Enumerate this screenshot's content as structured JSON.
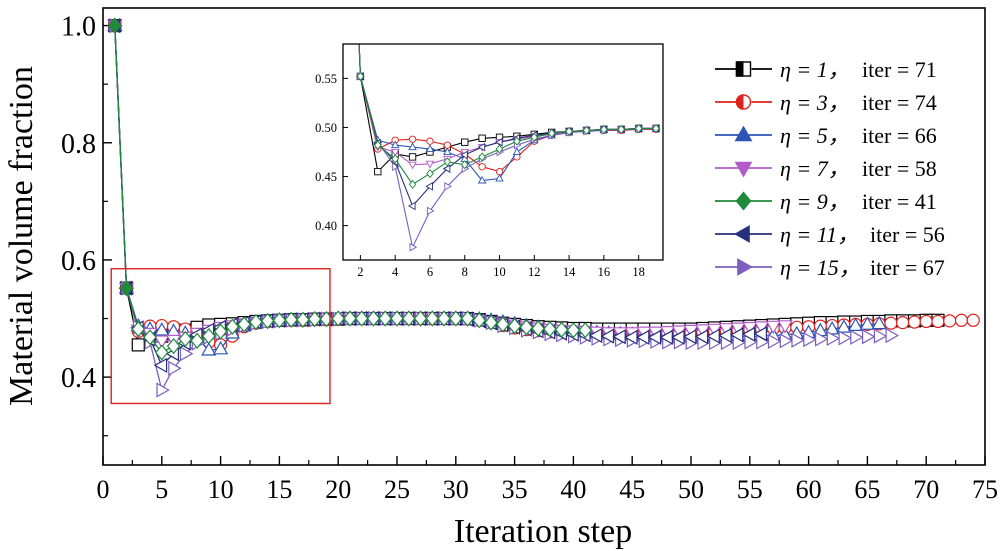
{
  "chart_data": [
    {
      "type": "line",
      "name": "main",
      "xlabel": "Iteration step",
      "ylabel": "Material volume fraction",
      "xlim": [
        0,
        75
      ],
      "ylim": [
        0.25,
        1.03
      ],
      "xticks": [
        "0",
        "5",
        "10",
        "15",
        "20",
        "25",
        "30",
        "35",
        "40",
        "45",
        "50",
        "55",
        "60",
        "65",
        "70",
        "75"
      ],
      "yticks": [
        "0.4",
        "0.6",
        "0.8",
        "1.0"
      ],
      "highlight_box": {
        "x_range": [
          0.7,
          19.3
        ],
        "y_range": [
          0.355,
          0.585
        ],
        "color": "#e0211f"
      },
      "series": [
        {
          "name": "η = 1",
          "label_eta": "η = 1，",
          "label_iter": "iter = 71",
          "color": "#000000",
          "marker": "square",
          "x": [
            1,
            2,
            3,
            4,
            5,
            6,
            7,
            8,
            9,
            10,
            11,
            12,
            13,
            14,
            15,
            16,
            17,
            18,
            19,
            20,
            21,
            22,
            23,
            24,
            25,
            26,
            27,
            28,
            29,
            30,
            31,
            32,
            33,
            34,
            35,
            36,
            37,
            38,
            39,
            40,
            41,
            42,
            43,
            44,
            45,
            46,
            47,
            48,
            49,
            50,
            51,
            52,
            53,
            54,
            55,
            56,
            57,
            58,
            59,
            60,
            61,
            62,
            63,
            64,
            65,
            66,
            67,
            68,
            69,
            70,
            71
          ],
          "y": [
            1.0,
            0.552,
            0.455,
            0.473,
            0.47,
            0.475,
            0.48,
            0.485,
            0.489,
            0.49,
            0.491,
            0.493,
            0.495,
            0.496,
            0.497,
            0.498,
            0.498,
            0.499,
            0.499,
            0.499,
            0.5,
            0.5,
            0.5,
            0.5,
            0.5,
            0.5,
            0.5,
            0.5,
            0.5,
            0.5,
            0.5,
            0.498,
            0.495,
            0.492,
            0.49,
            0.488,
            0.486,
            0.485,
            0.484,
            0.483,
            0.483,
            0.482,
            0.482,
            0.482,
            0.482,
            0.482,
            0.482,
            0.482,
            0.482,
            0.482,
            0.483,
            0.484,
            0.485,
            0.486,
            0.487,
            0.488,
            0.489,
            0.49,
            0.491,
            0.492,
            0.493,
            0.493,
            0.494,
            0.494,
            0.495,
            0.495,
            0.496,
            0.496,
            0.496,
            0.497,
            0.497
          ]
        },
        {
          "name": "η = 3",
          "label_eta": "η = 3，",
          "label_iter": "iter = 74",
          "color": "#e0211f",
          "marker": "circle",
          "x": [
            1,
            2,
            3,
            4,
            5,
            6,
            7,
            8,
            9,
            10,
            11,
            12,
            13,
            14,
            15,
            16,
            17,
            18,
            19,
            20,
            21,
            22,
            23,
            24,
            25,
            26,
            27,
            28,
            29,
            30,
            31,
            32,
            33,
            34,
            35,
            36,
            37,
            38,
            39,
            40,
            41,
            42,
            43,
            44,
            45,
            46,
            47,
            48,
            49,
            50,
            51,
            52,
            53,
            54,
            55,
            56,
            57,
            58,
            59,
            60,
            61,
            62,
            63,
            64,
            65,
            66,
            67,
            68,
            69,
            70,
            71,
            72,
            73,
            74
          ],
          "y": [
            1.0,
            0.552,
            0.478,
            0.487,
            0.488,
            0.486,
            0.482,
            0.473,
            0.46,
            0.455,
            0.47,
            0.486,
            0.492,
            0.495,
            0.497,
            0.497,
            0.497,
            0.498,
            0.498,
            0.499,
            0.5,
            0.5,
            0.5,
            0.5,
            0.5,
            0.5,
            0.5,
            0.5,
            0.5,
            0.5,
            0.499,
            0.497,
            0.493,
            0.488,
            0.484,
            0.481,
            0.479,
            0.477,
            0.476,
            0.475,
            0.474,
            0.474,
            0.474,
            0.474,
            0.474,
            0.475,
            0.475,
            0.475,
            0.476,
            0.476,
            0.477,
            0.478,
            0.479,
            0.48,
            0.481,
            0.482,
            0.483,
            0.484,
            0.485,
            0.486,
            0.487,
            0.488,
            0.489,
            0.49,
            0.49,
            0.491,
            0.492,
            0.493,
            0.494,
            0.495,
            0.495,
            0.496,
            0.497,
            0.497
          ]
        },
        {
          "name": "η = 5",
          "label_eta": "η = 5，",
          "label_iter": "iter = 66",
          "color": "#2d55b5",
          "marker": "triangle-up",
          "x": [
            1,
            2,
            3,
            4,
            5,
            6,
            7,
            8,
            9,
            10,
            11,
            12,
            13,
            14,
            15,
            16,
            17,
            18,
            19,
            20,
            21,
            22,
            23,
            24,
            25,
            26,
            27,
            28,
            29,
            30,
            31,
            32,
            33,
            34,
            35,
            36,
            37,
            38,
            39,
            40,
            41,
            42,
            43,
            44,
            45,
            46,
            47,
            48,
            49,
            50,
            51,
            52,
            53,
            54,
            55,
            56,
            57,
            58,
            59,
            60,
            61,
            62,
            63,
            64,
            65,
            66
          ],
          "y": [
            1.0,
            0.552,
            0.487,
            0.482,
            0.48,
            0.478,
            0.475,
            0.468,
            0.446,
            0.448,
            0.475,
            0.487,
            0.492,
            0.495,
            0.497,
            0.498,
            0.498,
            0.499,
            0.499,
            0.5,
            0.5,
            0.5,
            0.5,
            0.5,
            0.5,
            0.5,
            0.5,
            0.5,
            0.5,
            0.5,
            0.5,
            0.499,
            0.497,
            0.494,
            0.491,
            0.488,
            0.485,
            0.483,
            0.481,
            0.479,
            0.477,
            0.476,
            0.475,
            0.474,
            0.473,
            0.472,
            0.471,
            0.47,
            0.469,
            0.469,
            0.469,
            0.469,
            0.469,
            0.469,
            0.469,
            0.47,
            0.471,
            0.472,
            0.474,
            0.476,
            0.479,
            0.482,
            0.485,
            0.488,
            0.49,
            0.491
          ]
        },
        {
          "name": "η = 7",
          "label_eta": "η = 7，",
          "label_iter": "iter = 58",
          "color": "#b35bc8",
          "marker": "triangle-down",
          "x": [
            1,
            2,
            3,
            4,
            5,
            6,
            7,
            8,
            9,
            10,
            11,
            12,
            13,
            14,
            15,
            16,
            17,
            18,
            19,
            20,
            21,
            22,
            23,
            24,
            25,
            26,
            27,
            28,
            29,
            30,
            31,
            32,
            33,
            34,
            35,
            36,
            37,
            38,
            39,
            40,
            41,
            42,
            43,
            44,
            45,
            46,
            47,
            48,
            49,
            50,
            51,
            52,
            53,
            54,
            55,
            56,
            57,
            58
          ],
          "y": [
            1.0,
            0.552,
            0.48,
            0.475,
            0.462,
            0.463,
            0.468,
            0.475,
            0.48,
            0.485,
            0.488,
            0.491,
            0.493,
            0.495,
            0.497,
            0.498,
            0.498,
            0.499,
            0.499,
            0.5,
            0.5,
            0.5,
            0.5,
            0.5,
            0.5,
            0.5,
            0.5,
            0.5,
            0.5,
            0.5,
            0.5,
            0.498,
            0.495,
            0.492,
            0.489,
            0.486,
            0.484,
            0.482,
            0.48,
            0.479,
            0.478,
            0.477,
            0.476,
            0.476,
            0.476,
            0.477,
            0.477,
            0.478,
            0.479,
            0.48,
            0.481,
            0.482,
            0.483,
            0.484,
            0.485,
            0.486,
            0.487,
            0.488
          ]
        },
        {
          "name": "η = 9",
          "label_eta": "η = 9，",
          "label_iter": "iter = 41",
          "color": "#1e8a3c",
          "marker": "diamond",
          "x": [
            1,
            2,
            3,
            4,
            5,
            6,
            7,
            8,
            9,
            10,
            11,
            12,
            13,
            14,
            15,
            16,
            17,
            18,
            19,
            20,
            21,
            22,
            23,
            24,
            25,
            26,
            27,
            28,
            29,
            30,
            31,
            32,
            33,
            34,
            35,
            36,
            37,
            38,
            39,
            40,
            41
          ],
          "y": [
            1.0,
            0.552,
            0.482,
            0.468,
            0.442,
            0.453,
            0.465,
            0.462,
            0.47,
            0.478,
            0.486,
            0.49,
            0.494,
            0.496,
            0.497,
            0.498,
            0.498,
            0.499,
            0.499,
            0.5,
            0.5,
            0.5,
            0.5,
            0.5,
            0.5,
            0.5,
            0.5,
            0.5,
            0.5,
            0.5,
            0.5,
            0.497,
            0.493,
            0.49,
            0.487,
            0.485,
            0.483,
            0.482,
            0.481,
            0.48,
            0.48
          ]
        },
        {
          "name": "η = 11",
          "label_eta": "η = 11，",
          "label_iter": "iter = 56",
          "color": "#27307a",
          "marker": "triangle-left",
          "x": [
            1,
            2,
            3,
            4,
            5,
            6,
            7,
            8,
            9,
            10,
            11,
            12,
            13,
            14,
            15,
            16,
            17,
            18,
            19,
            20,
            21,
            22,
            23,
            24,
            25,
            26,
            27,
            28,
            29,
            30,
            31,
            32,
            33,
            34,
            35,
            36,
            37,
            38,
            39,
            40,
            41,
            42,
            43,
            44,
            45,
            46,
            47,
            48,
            49,
            50,
            51,
            52,
            53,
            54,
            55,
            56
          ],
          "y": [
            1.0,
            0.552,
            0.484,
            0.465,
            0.42,
            0.44,
            0.458,
            0.472,
            0.48,
            0.485,
            0.489,
            0.492,
            0.494,
            0.496,
            0.497,
            0.498,
            0.498,
            0.499,
            0.499,
            0.5,
            0.5,
            0.5,
            0.5,
            0.5,
            0.5,
            0.5,
            0.5,
            0.5,
            0.5,
            0.5,
            0.499,
            0.497,
            0.493,
            0.489,
            0.485,
            0.482,
            0.479,
            0.477,
            0.475,
            0.473,
            0.472,
            0.471,
            0.47,
            0.469,
            0.468,
            0.468,
            0.468,
            0.468,
            0.468,
            0.469,
            0.469,
            0.47,
            0.471,
            0.472,
            0.473,
            0.474
          ]
        },
        {
          "name": "η = 15",
          "label_eta": "η = 15，",
          "label_iter": "iter = 67",
          "color": "#7b5ec0",
          "marker": "triangle-right",
          "x": [
            1,
            2,
            3,
            4,
            5,
            6,
            7,
            8,
            9,
            10,
            11,
            12,
            13,
            14,
            15,
            16,
            17,
            18,
            19,
            20,
            21,
            22,
            23,
            24,
            25,
            26,
            27,
            28,
            29,
            30,
            31,
            32,
            33,
            34,
            35,
            36,
            37,
            38,
            39,
            40,
            41,
            42,
            43,
            44,
            45,
            46,
            47,
            48,
            49,
            50,
            51,
            52,
            53,
            54,
            55,
            56,
            57,
            58,
            59,
            60,
            61,
            62,
            63,
            64,
            65,
            66,
            67
          ],
          "y": [
            1.0,
            0.552,
            0.485,
            0.46,
            0.378,
            0.415,
            0.44,
            0.458,
            0.468,
            0.475,
            0.482,
            0.488,
            0.492,
            0.495,
            0.496,
            0.497,
            0.498,
            0.498,
            0.499,
            0.499,
            0.5,
            0.5,
            0.5,
            0.5,
            0.5,
            0.5,
            0.5,
            0.5,
            0.5,
            0.5,
            0.5,
            0.497,
            0.493,
            0.488,
            0.484,
            0.48,
            0.477,
            0.474,
            0.472,
            0.47,
            0.468,
            0.466,
            0.465,
            0.464,
            0.463,
            0.462,
            0.461,
            0.46,
            0.46,
            0.459,
            0.459,
            0.459,
            0.459,
            0.459,
            0.46,
            0.46,
            0.461,
            0.462,
            0.463,
            0.464,
            0.465,
            0.466,
            0.467,
            0.468,
            0.469,
            0.47,
            0.471
          ]
        }
      ]
    },
    {
      "type": "line",
      "name": "inset",
      "xlim": [
        1,
        19.4
      ],
      "ylim": [
        0.365,
        0.585
      ],
      "xticks": [
        "2",
        "4",
        "6",
        "8",
        "10",
        "12",
        "14",
        "16",
        "18"
      ],
      "yticks": [
        "0.40",
        "0.45",
        "0.50",
        "0.55"
      ],
      "series_source": "main series, x from 1 to 19"
    }
  ]
}
